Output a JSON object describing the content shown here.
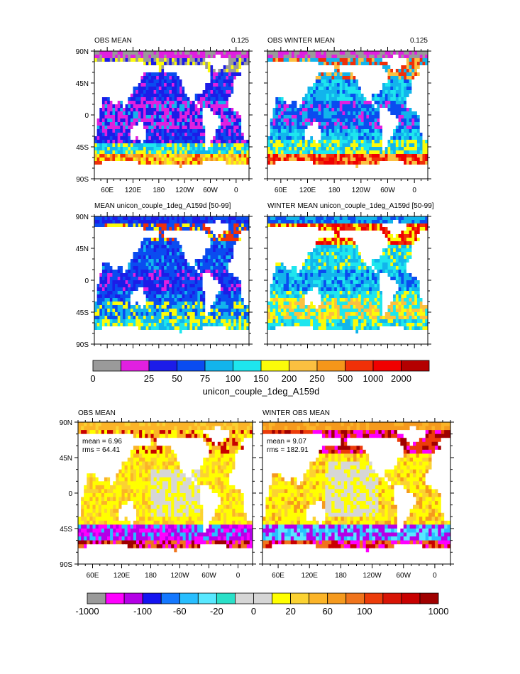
{
  "palettes": {
    "abs": [
      "#9a9a9a",
      "#e020e0",
      "#1c1ce8",
      "#0a4cf0",
      "#12b4ec",
      "#1ee6ee",
      "#fbfb0a",
      "#fbc040",
      "#f5961a",
      "#f03008",
      "#f00000",
      "#b40000"
    ],
    "diff": [
      "#9a9a9a",
      "#ff00ff",
      "#b400e6",
      "#1414f0",
      "#1478ff",
      "#28beff",
      "#58e8ff",
      "#2ae0c8",
      "#d6d6d6",
      "#d6d6d6",
      "#ffff00",
      "#fbd232",
      "#fbb428",
      "#f59a1e",
      "#f0741c",
      "#ec3c0a",
      "#d81405",
      "#c80000",
      "#a00000"
    ],
    "land": "#ffffff"
  },
  "panels": [
    {
      "id": "p1",
      "title_left": "OBS MEAN",
      "title_right": "0.125",
      "palette": "abs",
      "pattern": "obs_mean",
      "mean": "",
      "rms": ""
    },
    {
      "id": "p2",
      "title_left": "OBS WINTER MEAN",
      "title_right": "0.125",
      "palette": "abs",
      "pattern": "obs_winter",
      "mean": "",
      "rms": ""
    },
    {
      "id": "p3",
      "title_left": "MEAN unicon_couple_1deg_A159d [50-99]",
      "title_right": "",
      "palette": "abs",
      "pattern": "model_mean",
      "mean": "",
      "rms": ""
    },
    {
      "id": "p4",
      "title_left": "WINTER MEAN unicon_couple_1deg_A159d [50-99]",
      "title_right": "",
      "palette": "abs",
      "pattern": "model_winter",
      "mean": "",
      "rms": ""
    },
    {
      "id": "p5",
      "title_left": "OBS MEAN",
      "title_right": "",
      "palette": "diff",
      "pattern": "diff_mean",
      "mean": "mean = 6.96",
      "rms": "rms = 64.41"
    },
    {
      "id": "p6",
      "title_left": "WINTER OBS MEAN",
      "title_right": "",
      "palette": "diff",
      "pattern": "diff_winter",
      "mean": "mean = 9.07",
      "rms": "rms = 182.91"
    }
  ],
  "axes": {
    "lat_labels": [
      "90N",
      "45N",
      "0",
      "45S",
      "90S"
    ],
    "lon_labels": [
      "60E",
      "120E",
      "180",
      "120W",
      "60W",
      "0"
    ],
    "lat_values": [
      90,
      45,
      0,
      -45,
      -90
    ],
    "lon_values": [
      60,
      120,
      180,
      240,
      300,
      360
    ]
  },
  "colorbar1": {
    "labels": [
      "0",
      "25",
      "50",
      "75",
      "100",
      "150",
      "200",
      "250",
      "500",
      "1000",
      "2000"
    ],
    "title": "unicon_couple_1deg_A159d"
  },
  "colorbar2": {
    "labels": [
      "-1000",
      "-100",
      "-60",
      "-20",
      "0",
      "20",
      "60",
      "100",
      "1000"
    ],
    "label_boxes": [
      0,
      3,
      5,
      7,
      9,
      11,
      13,
      15,
      19
    ]
  },
  "chart_data": [
    {
      "type": "heatmap",
      "title": "OBS MEAN",
      "subtitle": "0.125",
      "xlabel": "",
      "ylabel": "",
      "x_ticks": [
        "60E",
        "120E",
        "180",
        "120W",
        "60W",
        "0"
      ],
      "y_ticks": [
        "90N",
        "45N",
        "0",
        "45S",
        "90S"
      ],
      "levels": [
        0,
        25,
        50,
        75,
        100,
        150,
        200,
        250,
        500,
        1000,
        2000
      ]
    },
    {
      "type": "heatmap",
      "title": "OBS WINTER MEAN",
      "subtitle": "0.125",
      "x_ticks": [
        "60E",
        "120E",
        "180",
        "120W",
        "60W",
        "0"
      ],
      "y_ticks": [
        "90N",
        "45N",
        "0",
        "45S",
        "90S"
      ],
      "levels": [
        0,
        25,
        50,
        75,
        100,
        150,
        200,
        250,
        500,
        1000,
        2000
      ]
    },
    {
      "type": "heatmap",
      "title": "MEAN unicon_couple_1deg_A159d [50-99]",
      "x_ticks": [
        "60E",
        "120E",
        "180",
        "120W",
        "60W",
        "0"
      ],
      "y_ticks": [
        "90N",
        "45N",
        "0",
        "45S",
        "90S"
      ],
      "levels": [
        0,
        25,
        50,
        75,
        100,
        150,
        200,
        250,
        500,
        1000,
        2000
      ]
    },
    {
      "type": "heatmap",
      "title": "WINTER MEAN unicon_couple_1deg_A159d [50-99]",
      "x_ticks": [
        "60E",
        "120E",
        "180",
        "120W",
        "60W",
        "0"
      ],
      "y_ticks": [
        "90N",
        "45N",
        "0",
        "45S",
        "90S"
      ],
      "levels": [
        0,
        25,
        50,
        75,
        100,
        150,
        200,
        250,
        500,
        1000,
        2000
      ]
    },
    {
      "type": "heatmap",
      "title": "OBS MEAN",
      "annotations": [
        "mean = 6.96",
        "rms = 64.41"
      ],
      "x_ticks": [
        "60E",
        "120E",
        "180",
        "120W",
        "60W",
        "0"
      ],
      "y_ticks": [
        "90N",
        "45N",
        "0",
        "45S",
        "90S"
      ],
      "levels": [
        -1000,
        -100,
        -60,
        -20,
        0,
        20,
        60,
        100,
        1000
      ]
    },
    {
      "type": "heatmap",
      "title": "WINTER OBS MEAN",
      "annotations": [
        "mean = 9.07",
        "rms = 182.91"
      ],
      "x_ticks": [
        "60E",
        "120E",
        "180",
        "120W",
        "60W",
        "0"
      ],
      "y_ticks": [
        "90N",
        "45N",
        "0",
        "45S",
        "90S"
      ],
      "levels": [
        -1000,
        -100,
        -60,
        -20,
        0,
        20,
        60,
        100,
        1000
      ]
    }
  ]
}
